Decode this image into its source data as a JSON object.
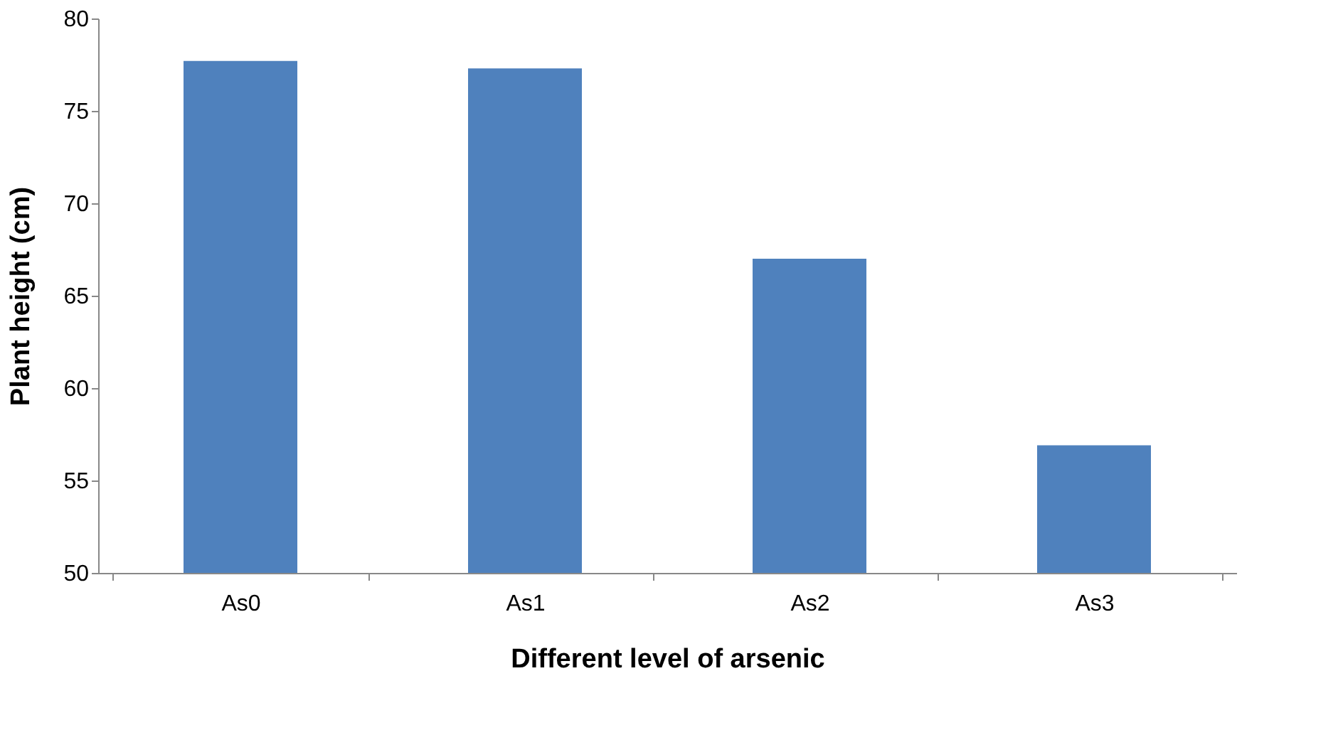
{
  "chart_data": {
    "type": "bar",
    "xlabel": "Different level of arsenic",
    "ylabel": "Plant height  (cm)",
    "categories": [
      "As0",
      "As1",
      "As2",
      "As3"
    ],
    "values": [
      77.7,
      77.3,
      67.0,
      56.9
    ],
    "color": "#4f81bd",
    "ylim": [
      50,
      80
    ],
    "yticks": [
      50,
      55,
      60,
      65,
      70,
      75,
      80
    ],
    "grid": false
  }
}
